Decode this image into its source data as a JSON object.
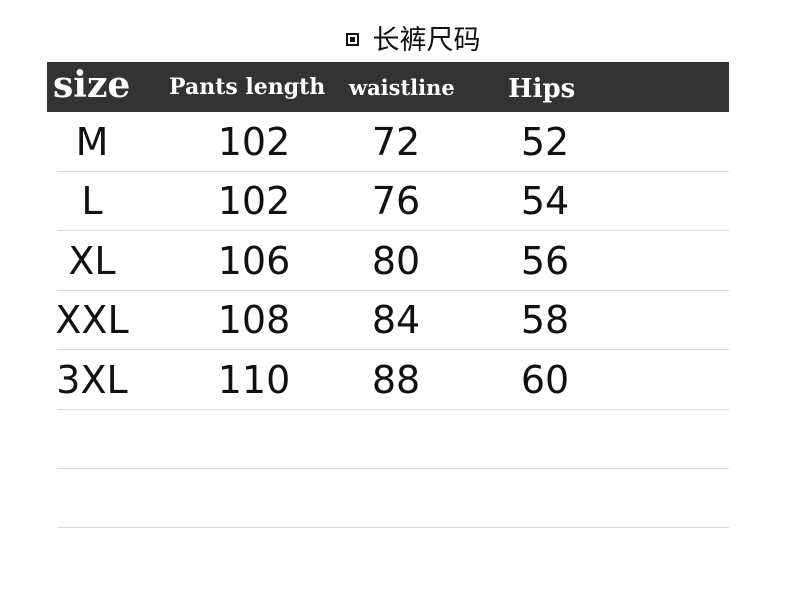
{
  "title": "长裤尺码",
  "title_icon": "square-bullet-icon",
  "table": {
    "headers": [
      "size",
      "Pants length",
      "waistline",
      "Hips"
    ],
    "rows": [
      [
        "M",
        "102",
        "72",
        "52"
      ],
      [
        "L",
        "102",
        "76",
        "54"
      ],
      [
        "XL",
        "106",
        "80",
        "56"
      ],
      [
        "XXL",
        "108",
        "84",
        "58"
      ],
      [
        "3XL",
        "110",
        "88",
        "60"
      ],
      [
        "",
        "",
        "",
        ""
      ],
      [
        "",
        "",
        "",
        ""
      ]
    ]
  },
  "colors": {
    "header_bg": "#333333",
    "header_text": "#ffffff"
  }
}
